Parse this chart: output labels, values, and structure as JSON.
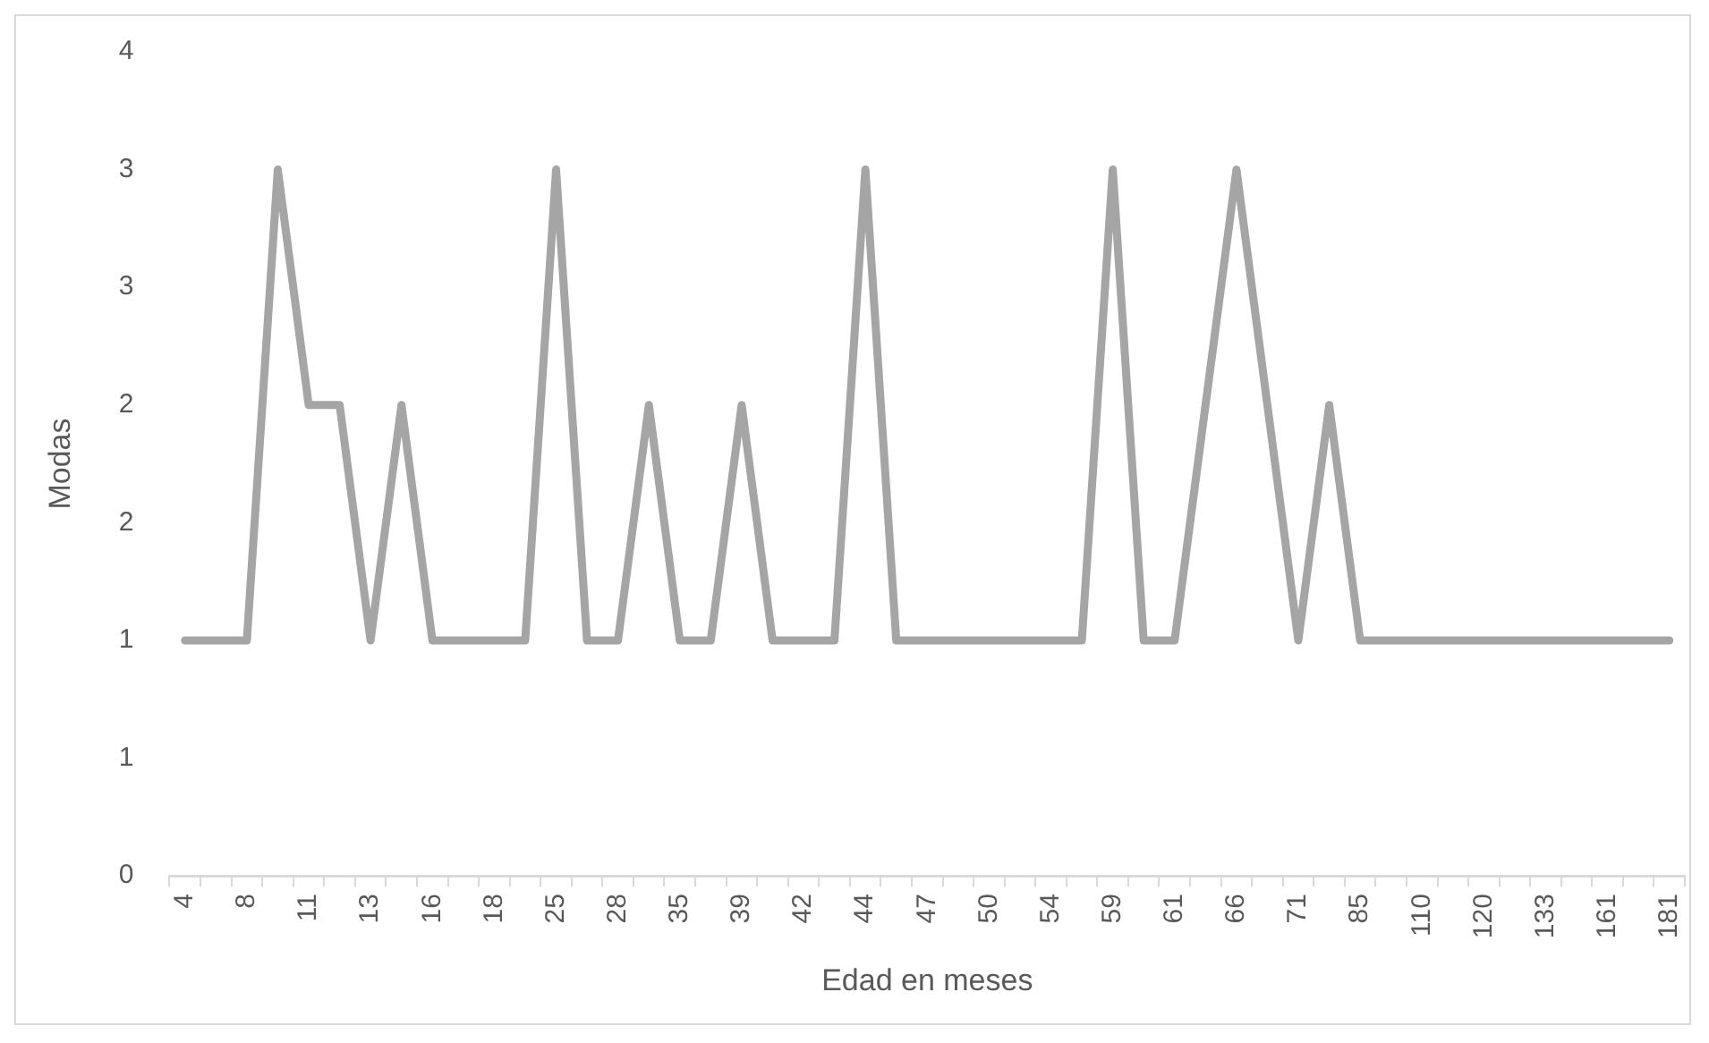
{
  "chart_data": {
    "type": "line",
    "xlabel": "Edad en meses",
    "ylabel": "Modas",
    "categories": [
      "4",
      null,
      "8",
      null,
      "11",
      null,
      "13",
      null,
      "16",
      null,
      "18",
      null,
      "25",
      null,
      "28",
      null,
      "35",
      null,
      "39",
      null,
      "42",
      null,
      "44",
      null,
      "47",
      null,
      "50",
      null,
      "54",
      null,
      "59",
      null,
      "61",
      null,
      "66",
      null,
      "71",
      null,
      "85",
      null,
      "110",
      null,
      "120",
      null,
      "133",
      null,
      "161",
      null,
      "181"
    ],
    "series": [
      {
        "color": "#a5a5a5",
        "values": [
          1,
          1,
          1,
          3,
          2,
          2,
          1,
          2,
          1,
          1,
          1,
          1,
          3,
          1,
          1,
          2,
          1,
          1,
          2,
          1,
          1,
          1,
          3,
          1,
          1,
          1,
          1,
          1,
          1,
          1,
          3,
          1,
          1,
          2,
          3,
          2,
          1,
          2,
          1,
          1,
          1,
          1,
          1,
          1,
          1,
          1,
          1,
          1,
          1
        ]
      }
    ],
    "ylim": [
      0,
      3.5
    ],
    "yticks": [
      0,
      {
        "value": 0.5,
        "label": "1"
      },
      1,
      {
        "value": 1.5,
        "label": "2"
      },
      2,
      {
        "value": 2.5,
        "label": "3"
      },
      3,
      {
        "value": 3.5,
        "label": "4"
      }
    ],
    "grid": false,
    "legend": false,
    "marker": "none",
    "line_style": "solid"
  }
}
